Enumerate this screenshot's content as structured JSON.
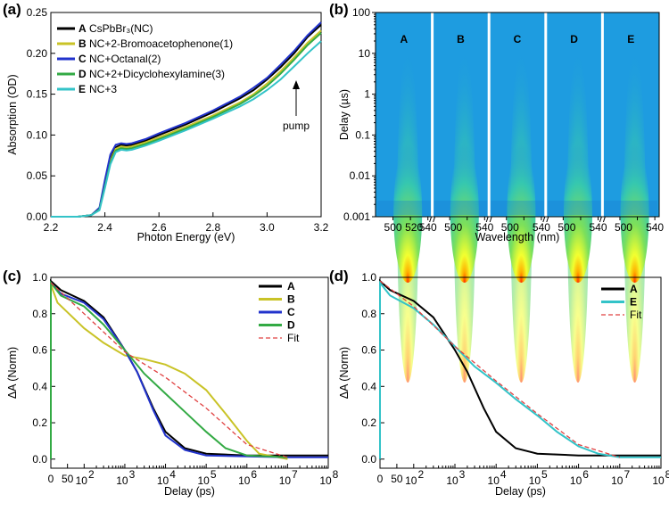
{
  "colors": {
    "A": "#000000",
    "B": "#c9c327",
    "C": "#2233cc",
    "D": "#33aa44",
    "E": "#33c3c8",
    "fit": "#e04040",
    "heat_bg": "#1e9ce0"
  },
  "chart_data": [
    {
      "panel": "(a)",
      "type": "line",
      "xlabel": "Photon Energy (eV)",
      "ylabel": "Absorption (OD)",
      "xlim": [
        2.2,
        3.2
      ],
      "ylim": [
        0,
        0.25
      ],
      "xticks": [
        "2.2",
        "2.4",
        "2.6",
        "2.8",
        "3.0",
        "3.2"
      ],
      "yticks": [
        "0.00",
        "0.05",
        "0.10",
        "0.15",
        "0.20",
        "0.25"
      ],
      "annotation": "pump",
      "legend": [
        {
          "key": "A",
          "text": "CsPbBr₃(NC)"
        },
        {
          "key": "B",
          "text": "NC+2-Bromoacetophenone(1)"
        },
        {
          "key": "C",
          "text": "NC+Octanal(2)"
        },
        {
          "key": "D",
          "text": "NC+2+Dicyclohexylamine(3)"
        },
        {
          "key": "E",
          "text": "NC+3"
        }
      ],
      "x": [
        2.2,
        2.3,
        2.35,
        2.38,
        2.4,
        2.42,
        2.44,
        2.46,
        2.48,
        2.5,
        2.55,
        2.6,
        2.7,
        2.8,
        2.9,
        2.95,
        3.0,
        3.05,
        3.1,
        3.15,
        3.2
      ],
      "series": [
        {
          "key": "A",
          "values": [
            0.0,
            0.0,
            0.002,
            0.01,
            0.04,
            0.07,
            0.085,
            0.088,
            0.087,
            0.088,
            0.093,
            0.1,
            0.113,
            0.128,
            0.145,
            0.155,
            0.168,
            0.183,
            0.2,
            0.22,
            0.235
          ]
        },
        {
          "key": "B",
          "values": [
            0.0,
            0.0,
            0.002,
            0.009,
            0.038,
            0.068,
            0.083,
            0.086,
            0.085,
            0.086,
            0.091,
            0.097,
            0.11,
            0.124,
            0.14,
            0.15,
            0.163,
            0.178,
            0.195,
            0.213,
            0.228
          ]
        },
        {
          "key": "C",
          "values": [
            0.0,
            0.0,
            0.002,
            0.011,
            0.045,
            0.076,
            0.088,
            0.09,
            0.089,
            0.09,
            0.095,
            0.102,
            0.115,
            0.13,
            0.147,
            0.158,
            0.17,
            0.186,
            0.203,
            0.222,
            0.238
          ]
        },
        {
          "key": "D",
          "values": [
            0.0,
            0.0,
            0.002,
            0.009,
            0.037,
            0.066,
            0.081,
            0.084,
            0.083,
            0.084,
            0.089,
            0.095,
            0.108,
            0.122,
            0.138,
            0.148,
            0.16,
            0.175,
            0.192,
            0.21,
            0.225
          ]
        },
        {
          "key": "E",
          "values": [
            0.0,
            0.0,
            0.002,
            0.008,
            0.035,
            0.064,
            0.079,
            0.082,
            0.081,
            0.082,
            0.087,
            0.093,
            0.106,
            0.12,
            0.135,
            0.144,
            0.155,
            0.168,
            0.184,
            0.2,
            0.215
          ]
        }
      ]
    },
    {
      "panel": "(b)",
      "type": "heatmap",
      "xlabel": "Wavelength (nm)",
      "ylabel": "Delay (µs)",
      "ylim": [
        0.001,
        100
      ],
      "yscale": "log",
      "yticks": [
        "0.001",
        "0.01",
        "0.1",
        "1",
        "10",
        "100"
      ],
      "xlim_nm": [
        480,
        545
      ],
      "xticks_nm": [
        500,
        520,
        540
      ],
      "first_tick": "500",
      "repeat_ticks": [
        "540",
        "500",
        "520"
      ],
      "peak_nm": 517,
      "blocks": [
        "A",
        "B",
        "C",
        "D",
        "E"
      ]
    },
    {
      "panel": "(c)",
      "type": "line",
      "xlabel": "Delay (ps)",
      "ylabel": "ΔA (Norm)",
      "xscale": "linear-log",
      "ylim": [
        -0.05,
        1.0
      ],
      "yticks": [
        "0.0",
        "0.2",
        "0.4",
        "0.6",
        "0.8",
        "1.0"
      ],
      "xticks_lin": [
        "0",
        "50"
      ],
      "xticks_log": [
        "10",
        "10",
        "10",
        "10",
        "10",
        "10",
        "10"
      ],
      "xticks_exp": [
        "2",
        "3",
        "4",
        "5",
        "6",
        "7",
        "8"
      ],
      "legend": [
        {
          "key": "A",
          "text": "A"
        },
        {
          "key": "B",
          "text": "B"
        },
        {
          "key": "C",
          "text": "C"
        },
        {
          "key": "D",
          "text": "D"
        },
        {
          "key": "fit",
          "text": "Fit"
        }
      ],
      "series": [
        {
          "key": "A",
          "points": [
            [
              0,
              0.98
            ],
            [
              30,
              0.93
            ],
            [
              100,
              0.87
            ],
            [
              300,
              0.78
            ],
            [
              1000,
              0.6
            ],
            [
              2000,
              0.48
            ],
            [
              5000,
              0.28
            ],
            [
              10000,
              0.15
            ],
            [
              30000,
              0.06
            ],
            [
              100000,
              0.03
            ],
            [
              1000000,
              0.02
            ],
            [
              100000000,
              0.02
            ]
          ]
        },
        {
          "key": "B",
          "points": [
            [
              0,
              0.96
            ],
            [
              20,
              0.86
            ],
            [
              100,
              0.72
            ],
            [
              300,
              0.64
            ],
            [
              1000,
              0.57
            ],
            [
              3000,
              0.55
            ],
            [
              10000,
              0.52
            ],
            [
              30000,
              0.47
            ],
            [
              100000,
              0.38
            ],
            [
              300000,
              0.25
            ],
            [
              1000000,
              0.1
            ],
            [
              2000000,
              0.03
            ],
            [
              10000000,
              0.0
            ]
          ]
        },
        {
          "key": "C",
          "points": [
            [
              0,
              0.97
            ],
            [
              30,
              0.91
            ],
            [
              100,
              0.86
            ],
            [
              300,
              0.77
            ],
            [
              1000,
              0.6
            ],
            [
              2000,
              0.48
            ],
            [
              5000,
              0.27
            ],
            [
              10000,
              0.13
            ],
            [
              30000,
              0.05
            ],
            [
              100000,
              0.02
            ],
            [
              10000000,
              0.01
            ],
            [
              100000000,
              0.01
            ]
          ]
        },
        {
          "key": "D",
          "points": [
            [
              0,
              0.97
            ],
            [
              30,
              0.9
            ],
            [
              100,
              0.84
            ],
            [
              300,
              0.74
            ],
            [
              1000,
              0.6
            ],
            [
              3000,
              0.47
            ],
            [
              10000,
              0.36
            ],
            [
              30000,
              0.26
            ],
            [
              100000,
              0.15
            ],
            [
              300000,
              0.06
            ],
            [
              1000000,
              0.02
            ],
            [
              10000000,
              0.01
            ]
          ]
        },
        {
          "key": "fit",
          "points": [
            [
              0,
              0.97
            ],
            [
              100,
              0.8
            ],
            [
              1000,
              0.59
            ],
            [
              10000,
              0.45
            ],
            [
              100000,
              0.28
            ],
            [
              1000000,
              0.08
            ],
            [
              10000000,
              0.01
            ]
          ]
        }
      ]
    },
    {
      "panel": "(d)",
      "type": "line",
      "xlabel": "Delay (ps)",
      "ylabel": "ΔA (Norm)",
      "xscale": "linear-log",
      "ylim": [
        -0.05,
        1.0
      ],
      "yticks": [
        "0.0",
        "0.2",
        "0.4",
        "0.6",
        "0.8",
        "1.0"
      ],
      "xticks_lin": [
        "0",
        "50"
      ],
      "xticks_log": [
        "10",
        "10",
        "10",
        "10",
        "10",
        "10",
        "10"
      ],
      "xticks_exp": [
        "2",
        "3",
        "4",
        "5",
        "6",
        "7",
        "8"
      ],
      "legend": [
        {
          "key": "A",
          "text": "A"
        },
        {
          "key": "E",
          "text": "E"
        },
        {
          "key": "fit",
          "text": "Fit"
        }
      ],
      "series": [
        {
          "key": "A",
          "points": [
            [
              0,
              0.98
            ],
            [
              30,
              0.93
            ],
            [
              100,
              0.87
            ],
            [
              300,
              0.78
            ],
            [
              1000,
              0.6
            ],
            [
              2000,
              0.48
            ],
            [
              5000,
              0.28
            ],
            [
              10000,
              0.15
            ],
            [
              30000,
              0.06
            ],
            [
              100000,
              0.03
            ],
            [
              1000000,
              0.02
            ],
            [
              100000000,
              0.02
            ]
          ]
        },
        {
          "key": "E",
          "points": [
            [
              0,
              0.97
            ],
            [
              30,
              0.9
            ],
            [
              100,
              0.83
            ],
            [
              300,
              0.74
            ],
            [
              1000,
              0.62
            ],
            [
              3000,
              0.51
            ],
            [
              10000,
              0.42
            ],
            [
              30000,
              0.33
            ],
            [
              100000,
              0.24
            ],
            [
              300000,
              0.15
            ],
            [
              1000000,
              0.07
            ],
            [
              3000000,
              0.03
            ],
            [
              10000000,
              0.01
            ],
            [
              100000000,
              0.01
            ]
          ]
        },
        {
          "key": "fit",
          "points": [
            [
              0,
              0.98
            ],
            [
              100,
              0.84
            ],
            [
              1000,
              0.62
            ],
            [
              10000,
              0.43
            ],
            [
              100000,
              0.25
            ],
            [
              1000000,
              0.08
            ],
            [
              10000000,
              0.01
            ]
          ]
        }
      ]
    }
  ]
}
